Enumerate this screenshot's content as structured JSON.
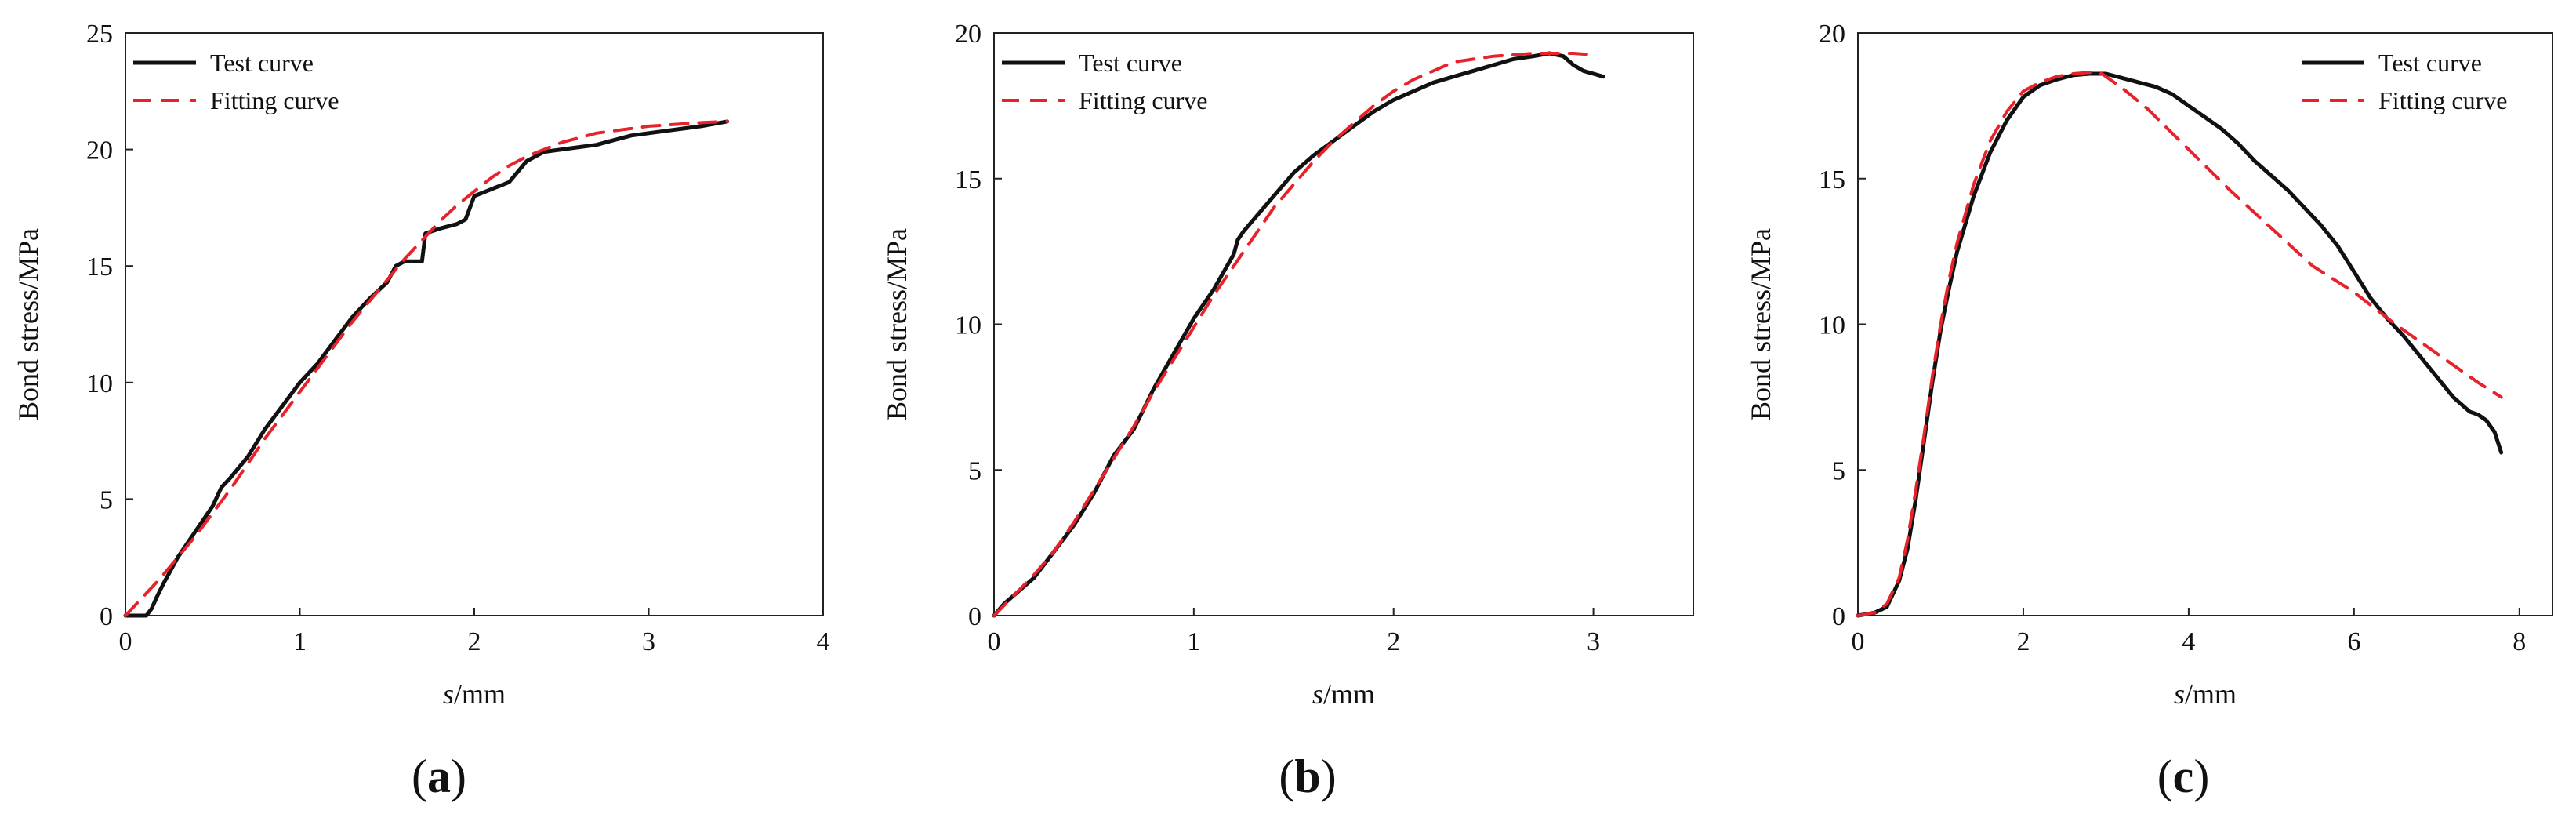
{
  "figure": {
    "panels": [
      "a",
      "b",
      "c"
    ]
  },
  "chart_data": [
    {
      "type": "line",
      "panel_label": "a",
      "xlabel_italic": "s",
      "xlabel_rest": "/mm",
      "ylabel": "Bond stress/MPa",
      "xlim": [
        0,
        4
      ],
      "ylim": [
        0,
        25
      ],
      "xticks": [
        0,
        1,
        2,
        3,
        4
      ],
      "yticks": [
        0,
        5,
        10,
        15,
        20,
        25
      ],
      "legend_position": "top-left",
      "series": [
        {
          "name": "Test curve",
          "color": "#111111",
          "dash": "solid",
          "x": [
            0.0,
            0.12,
            0.15,
            0.18,
            0.22,
            0.3,
            0.4,
            0.5,
            0.55,
            0.6,
            0.7,
            0.8,
            0.9,
            1.0,
            1.1,
            1.2,
            1.3,
            1.4,
            1.5,
            1.55,
            1.6,
            1.7,
            1.72,
            1.8,
            1.9,
            1.95,
            2.0,
            2.1,
            2.2,
            2.3,
            2.4,
            2.5,
            2.6,
            2.7,
            2.8,
            2.9,
            3.0,
            3.1,
            3.2,
            3.3,
            3.45
          ],
          "y": [
            0.0,
            0.0,
            0.3,
            0.8,
            1.4,
            2.5,
            3.6,
            4.7,
            5.5,
            5.9,
            6.8,
            8.0,
            9.0,
            10.0,
            10.8,
            11.8,
            12.8,
            13.6,
            14.3,
            15.0,
            15.2,
            15.2,
            16.4,
            16.6,
            16.8,
            17.0,
            18.0,
            18.3,
            18.6,
            19.5,
            19.9,
            20.0,
            20.1,
            20.2,
            20.4,
            20.6,
            20.7,
            20.8,
            20.9,
            21.0,
            21.2
          ]
        },
        {
          "name": "Fitting curve",
          "color": "#e8222b",
          "dash": "dashed",
          "x": [
            0.0,
            0.1,
            0.2,
            0.3,
            0.4,
            0.5,
            0.6,
            0.7,
            0.8,
            0.9,
            1.0,
            1.1,
            1.2,
            1.3,
            1.4,
            1.5,
            1.6,
            1.7,
            1.8,
            1.9,
            2.0,
            2.1,
            2.2,
            2.3,
            2.4,
            2.5,
            2.6,
            2.7,
            2.8,
            2.9,
            3.0,
            3.1,
            3.2,
            3.3,
            3.45
          ],
          "y": [
            0.0,
            0.8,
            1.6,
            2.5,
            3.4,
            4.4,
            5.4,
            6.5,
            7.6,
            8.6,
            9.6,
            10.6,
            11.6,
            12.6,
            13.5,
            14.4,
            15.3,
            16.1,
            16.9,
            17.6,
            18.2,
            18.8,
            19.3,
            19.7,
            20.0,
            20.3,
            20.5,
            20.7,
            20.8,
            20.9,
            21.0,
            21.05,
            21.1,
            21.15,
            21.2
          ]
        }
      ]
    },
    {
      "type": "line",
      "panel_label": "b",
      "xlabel_italic": "s",
      "xlabel_rest": "/mm",
      "ylabel": "Bond stress/MPa",
      "xlim": [
        0,
        3.5
      ],
      "ylim": [
        0,
        20
      ],
      "xticks": [
        0,
        1,
        2,
        3
      ],
      "yticks": [
        0,
        5,
        10,
        15,
        20
      ],
      "legend_position": "top-left",
      "series": [
        {
          "name": "Test curve",
          "color": "#111111",
          "dash": "solid",
          "x": [
            0.0,
            0.05,
            0.1,
            0.2,
            0.3,
            0.4,
            0.5,
            0.6,
            0.7,
            0.8,
            0.9,
            1.0,
            1.1,
            1.2,
            1.22,
            1.25,
            1.3,
            1.4,
            1.5,
            1.6,
            1.7,
            1.8,
            1.9,
            2.0,
            2.1,
            2.2,
            2.3,
            2.4,
            2.5,
            2.6,
            2.7,
            2.78,
            2.85,
            2.9,
            2.95,
            3.0,
            3.05
          ],
          "y": [
            0.0,
            0.4,
            0.7,
            1.3,
            2.2,
            3.1,
            4.2,
            5.5,
            6.4,
            7.8,
            9.0,
            10.2,
            11.2,
            12.4,
            12.9,
            13.2,
            13.6,
            14.4,
            15.2,
            15.8,
            16.3,
            16.8,
            17.3,
            17.7,
            18.0,
            18.3,
            18.5,
            18.7,
            18.9,
            19.1,
            19.2,
            19.3,
            19.2,
            18.9,
            18.7,
            18.6,
            18.5
          ]
        },
        {
          "name": "Fitting curve",
          "color": "#e8222b",
          "dash": "dashed",
          "x": [
            0.0,
            0.1,
            0.2,
            0.3,
            0.4,
            0.5,
            0.6,
            0.7,
            0.8,
            0.9,
            1.0,
            1.1,
            1.2,
            1.3,
            1.4,
            1.5,
            1.6,
            1.7,
            1.8,
            1.9,
            2.0,
            2.1,
            2.2,
            2.3,
            2.4,
            2.5,
            2.6,
            2.7,
            2.8,
            2.9,
            3.0
          ],
          "y": [
            0.0,
            0.7,
            1.4,
            2.2,
            3.2,
            4.3,
            5.4,
            6.5,
            7.7,
            8.8,
            9.9,
            11.0,
            12.0,
            13.0,
            14.0,
            14.8,
            15.6,
            16.3,
            16.9,
            17.5,
            18.0,
            18.4,
            18.7,
            19.0,
            19.1,
            19.2,
            19.25,
            19.3,
            19.3,
            19.3,
            19.25
          ]
        }
      ]
    },
    {
      "type": "line",
      "panel_label": "c",
      "xlabel_italic": "s",
      "xlabel_rest": "/mm",
      "ylabel": "Bond stress/MPa",
      "xlim": [
        0,
        8.4
      ],
      "ylim": [
        0,
        20
      ],
      "xticks": [
        0,
        2,
        4,
        6,
        8
      ],
      "yticks": [
        0,
        5,
        10,
        15,
        20
      ],
      "legend_position": "top-right",
      "series": [
        {
          "name": "Test curve",
          "color": "#111111",
          "dash": "solid",
          "x": [
            0.0,
            0.2,
            0.35,
            0.5,
            0.6,
            0.7,
            0.8,
            0.9,
            1.0,
            1.1,
            1.2,
            1.4,
            1.6,
            1.8,
            2.0,
            2.2,
            2.4,
            2.6,
            2.8,
            3.0,
            3.2,
            3.4,
            3.6,
            3.8,
            4.0,
            4.2,
            4.4,
            4.6,
            4.8,
            5.0,
            5.2,
            5.4,
            5.6,
            5.8,
            6.0,
            6.2,
            6.4,
            6.6,
            6.8,
            7.0,
            7.2,
            7.4,
            7.5,
            7.6,
            7.7,
            7.78
          ],
          "y": [
            0.0,
            0.1,
            0.3,
            1.2,
            2.3,
            4.0,
            6.0,
            8.0,
            9.8,
            11.2,
            12.5,
            14.4,
            15.9,
            17.0,
            17.8,
            18.2,
            18.4,
            18.55,
            18.6,
            18.6,
            18.45,
            18.3,
            18.15,
            17.9,
            17.5,
            17.1,
            16.7,
            16.2,
            15.6,
            15.1,
            14.6,
            14.0,
            13.4,
            12.7,
            11.8,
            10.9,
            10.2,
            9.6,
            8.9,
            8.2,
            7.5,
            7.0,
            6.9,
            6.7,
            6.3,
            5.6
          ]
        },
        {
          "name": "Fitting curve",
          "color": "#e8222b",
          "dash": "dashed",
          "x": [
            0.0,
            0.2,
            0.35,
            0.5,
            0.6,
            0.7,
            0.8,
            0.9,
            1.0,
            1.1,
            1.2,
            1.4,
            1.6,
            1.8,
            2.0,
            2.2,
            2.4,
            2.6,
            2.8,
            2.95,
            3.2,
            3.5,
            4.0,
            4.5,
            5.0,
            5.5,
            6.0,
            6.5,
            7.0,
            7.5,
            7.78
          ],
          "y": [
            0.0,
            0.1,
            0.4,
            1.3,
            2.6,
            4.3,
            6.2,
            8.2,
            10.0,
            11.5,
            12.8,
            14.8,
            16.3,
            17.3,
            18.0,
            18.3,
            18.5,
            18.6,
            18.65,
            18.6,
            18.1,
            17.4,
            16.0,
            14.6,
            13.3,
            12.0,
            11.1,
            10.0,
            9.0,
            8.0,
            7.5
          ]
        }
      ]
    }
  ]
}
